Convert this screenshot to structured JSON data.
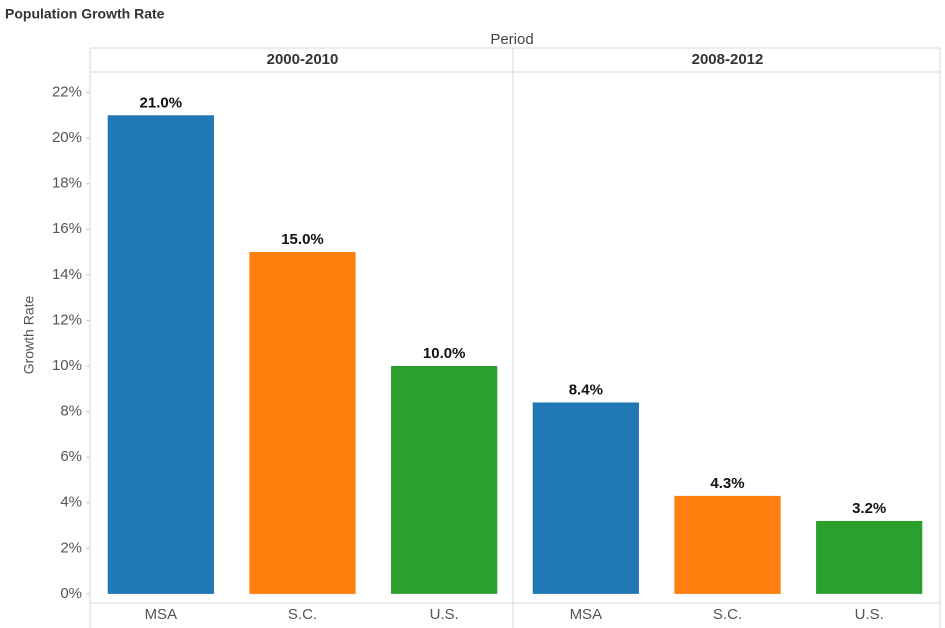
{
  "chart_data": {
    "type": "bar",
    "title": "Population Growth Rate",
    "column_header": "Period",
    "y_label": "Growth Rate",
    "colors": [
      "#1f77b4",
      "#ff7f0e",
      "#2ca02c"
    ],
    "panels": [
      {
        "name": "2000-2010",
        "categories": [
          "MSA",
          "S.C.",
          "U.S."
        ],
        "values": [
          21.0,
          15.0,
          10.0
        ],
        "value_labels": [
          "21.0%",
          "15.0%",
          "10.0%"
        ]
      },
      {
        "name": "2008-2012",
        "categories": [
          "MSA",
          "S.C.",
          "U.S."
        ],
        "values": [
          8.4,
          4.3,
          3.2
        ],
        "value_labels": [
          "8.4%",
          "4.3%",
          "3.2%"
        ]
      }
    ],
    "ylim": [
      -0.4,
      22.9
    ],
    "yticks": [
      {
        "value": 0,
        "label": "0%"
      },
      {
        "value": 2,
        "label": "2%"
      },
      {
        "value": 4,
        "label": "4%"
      },
      {
        "value": 6,
        "label": "6%"
      },
      {
        "value": 8,
        "label": "8%"
      },
      {
        "value": 10,
        "label": "10%"
      },
      {
        "value": 12,
        "label": "12%"
      },
      {
        "value": 14,
        "label": "14%"
      },
      {
        "value": 16,
        "label": "16%"
      },
      {
        "value": 18,
        "label": "18%"
      },
      {
        "value": 20,
        "label": "20%"
      },
      {
        "value": 22,
        "label": "22%"
      }
    ],
    "grid": false
  }
}
